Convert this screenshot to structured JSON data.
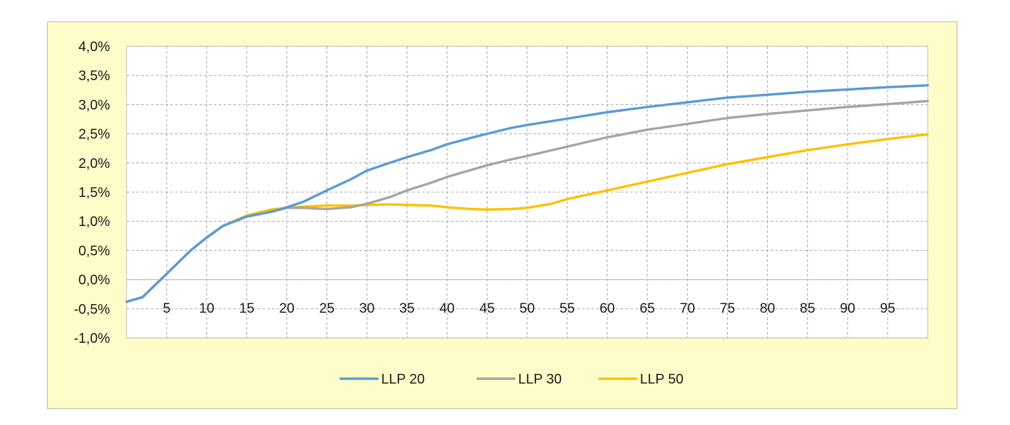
{
  "chart_data": {
    "type": "line",
    "title": "",
    "xlabel": "",
    "ylabel": "",
    "x_range": [
      0,
      100
    ],
    "ylim": [
      -1.0,
      4.0
    ],
    "y_ticks": [
      -1.0,
      -0.5,
      0.0,
      0.5,
      1.0,
      1.5,
      2.0,
      2.5,
      3.0,
      3.5,
      4.0
    ],
    "y_tick_labels": [
      "-1,0%",
      "-0,5%",
      "0,0%",
      "0,5%",
      "1,0%",
      "1,5%",
      "2,0%",
      "2,5%",
      "3,0%",
      "3,5%",
      "4,0%"
    ],
    "x_ticks": [
      5,
      10,
      15,
      20,
      25,
      30,
      35,
      40,
      45,
      50,
      55,
      60,
      65,
      70,
      75,
      80,
      85,
      90,
      95
    ],
    "x_tick_labels": [
      "5",
      "10",
      "15",
      "20",
      "25",
      "30",
      "35",
      "40",
      "45",
      "50",
      "55",
      "60",
      "65",
      "70",
      "75",
      "80",
      "85",
      "90",
      "95"
    ],
    "grid": true,
    "legend_position": "bottom",
    "colors": {
      "LLP 20": "#5b9bd5",
      "LLP 30": "#a5a5a5",
      "LLP 50": "#ffc000",
      "background": "#fefcc8"
    },
    "series": [
      {
        "name": "LLP 20",
        "x": [
          0,
          2,
          5,
          8,
          10,
          12,
          15,
          18,
          20,
          22,
          25,
          28,
          30,
          33,
          35,
          38,
          40,
          43,
          45,
          48,
          50,
          55,
          60,
          65,
          70,
          75,
          80,
          85,
          90,
          95,
          100
        ],
        "y": [
          -0.38,
          -0.3,
          0.1,
          0.5,
          0.72,
          0.92,
          1.08,
          1.16,
          1.24,
          1.33,
          1.53,
          1.72,
          1.87,
          2.01,
          2.1,
          2.22,
          2.32,
          2.43,
          2.5,
          2.6,
          2.65,
          2.76,
          2.87,
          2.96,
          3.04,
          3.12,
          3.17,
          3.22,
          3.26,
          3.3,
          3.33
        ]
      },
      {
        "name": "LLP 30",
        "x": [
          0,
          2,
          5,
          8,
          10,
          12,
          15,
          18,
          20,
          22,
          25,
          28,
          30,
          33,
          35,
          38,
          40,
          43,
          45,
          48,
          50,
          55,
          60,
          65,
          70,
          75,
          80,
          85,
          90,
          95,
          100
        ],
        "y": [
          -0.38,
          -0.3,
          0.1,
          0.5,
          0.72,
          0.92,
          1.08,
          1.16,
          1.23,
          1.23,
          1.21,
          1.24,
          1.3,
          1.42,
          1.53,
          1.66,
          1.76,
          1.88,
          1.96,
          2.06,
          2.12,
          2.28,
          2.44,
          2.57,
          2.67,
          2.77,
          2.84,
          2.9,
          2.96,
          3.01,
          3.06
        ]
      },
      {
        "name": "LLP 50",
        "x": [
          0,
          2,
          5,
          8,
          10,
          12,
          15,
          18,
          20,
          22,
          25,
          28,
          30,
          33,
          35,
          38,
          40,
          43,
          45,
          48,
          50,
          53,
          55,
          60,
          65,
          70,
          75,
          80,
          85,
          90,
          95,
          100
        ],
        "y": [
          -0.38,
          -0.3,
          0.1,
          0.5,
          0.72,
          0.92,
          1.1,
          1.2,
          1.23,
          1.25,
          1.27,
          1.27,
          1.28,
          1.29,
          1.28,
          1.27,
          1.24,
          1.21,
          1.2,
          1.21,
          1.23,
          1.3,
          1.38,
          1.53,
          1.68,
          1.83,
          1.98,
          2.1,
          2.22,
          2.32,
          2.41,
          2.49
        ]
      }
    ]
  }
}
